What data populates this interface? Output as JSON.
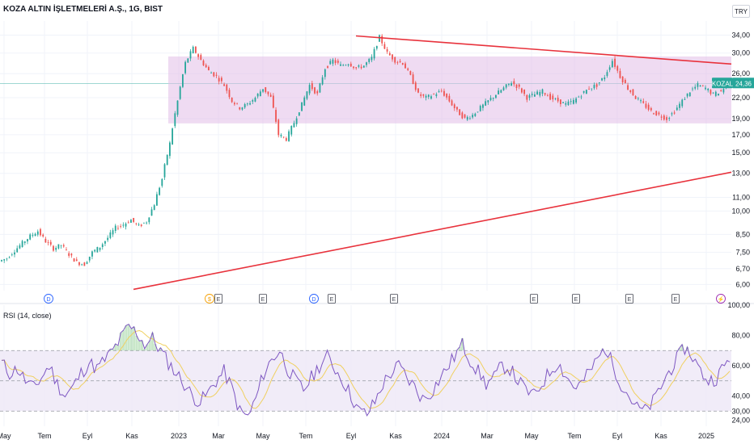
{
  "header": {
    "title": "KOZA ALTIN İŞLETMELERİ A.Ş., 1G, BIST",
    "currency": "TRY"
  },
  "price_badge": {
    "symbol": "KOZAL",
    "price": "24,36"
  },
  "colors": {
    "up": "#26a69a",
    "down": "#ef5350",
    "trendline": "#e8323c",
    "range_fill": "#e1bee7",
    "rsi_line": "#7e57c2",
    "rsi_ma": "#f0d060",
    "rsi_band": "#ede7f6",
    "grid": "#f0f3fa"
  },
  "chart_data": [
    {
      "type": "line",
      "subtype": "candlestick",
      "scale": "log",
      "y_ticks": [
        "34,00",
        "30,00",
        "26,00",
        "22,00",
        "19,00",
        "17,00",
        "15,00",
        "13,00",
        "11,00",
        "10,00",
        "8,50",
        "7,50",
        "6,70",
        "6,00"
      ],
      "y_tick_values": [
        34,
        30,
        26,
        22,
        19,
        17,
        15,
        13,
        11,
        10,
        8.5,
        7.5,
        6.7,
        6.0
      ],
      "x_ticks": [
        "May",
        "Tem",
        "Eyl",
        "Kas",
        "2023",
        "Mar",
        "May",
        "Tem",
        "Eyl",
        "Kas",
        "2024",
        "Mar",
        "May",
        "Tem",
        "Eyl",
        "Kas",
        "2025"
      ],
      "ylim": [
        5.75,
        37.5
      ],
      "series": [
        {
          "values": [
            7.2,
            7.6,
            8.0,
            8.4,
            8.7,
            8.1,
            7.7,
            7.9,
            7.4,
            7.0,
            6.9,
            7.5,
            7.8,
            8.3,
            8.9,
            9.1,
            9.4,
            9.0,
            9.3,
            10.5,
            12.5,
            16.0,
            21.5,
            28.0,
            31.0,
            28.5,
            26.5,
            25.5,
            24.0,
            21.5,
            20.5,
            21.0,
            22.0,
            23.5,
            22.0,
            17.0,
            16.5,
            18.5,
            21.0,
            24.0,
            22.5,
            27.0,
            28.5,
            27.5,
            28.0,
            27.0,
            27.5,
            29.0,
            33.5,
            30.0,
            28.5,
            28.0,
            25.5,
            22.5,
            22.0,
            22.5,
            23.0,
            21.5,
            20.0,
            19.0,
            19.5,
            20.5,
            21.5,
            22.5,
            23.5,
            24.5,
            23.5,
            22.0,
            22.5,
            23.0,
            22.0,
            21.5,
            21.0,
            21.5,
            22.5,
            23.5,
            24.0,
            25.5,
            28.5,
            25.5,
            23.5,
            22.0,
            21.0,
            20.0,
            19.5,
            19.0,
            20.0,
            21.5,
            23.0,
            24.0,
            23.5,
            22.5,
            23.0,
            24.3
          ],
          "note": "approximate closing path of the price chart"
        }
      ],
      "annotations": [
        {
          "type": "range",
          "from": 18.4,
          "to": 29.3,
          "label": ""
        },
        {
          "type": "trendline",
          "points": [
            [
              33.8,
              "start"
            ],
            [
              27.8,
              "end"
            ]
          ]
        },
        {
          "type": "trendline",
          "points": [
            [
              5.8,
              "start"
            ],
            [
              13.1,
              "end"
            ]
          ]
        }
      ],
      "events": [
        "D",
        "$",
        "E",
        "E",
        "D",
        "E",
        "E",
        "E",
        "E",
        "E",
        "E",
        "⚡"
      ],
      "event_kinds": [
        "dividend",
        "split",
        "earnings",
        "earnings",
        "dividend",
        "earnings",
        "earnings",
        "earnings",
        "earnings",
        "earnings",
        "earnings",
        "news"
      ],
      "grid": true,
      "legend": "none"
    },
    {
      "type": "line",
      "title": "RSI (14, close)",
      "y_ticks": [
        "100,00",
        "80,00",
        "60,00",
        "40,00",
        "30,00",
        "24,00"
      ],
      "y_tick_values": [
        100,
        80,
        60,
        40,
        30,
        24
      ],
      "ylim": [
        20,
        100
      ],
      "band": [
        30,
        70
      ],
      "series": [
        {
          "name": "RSI (14, close)",
          "values": [
            62,
            55,
            58,
            50,
            45,
            52,
            60,
            48,
            40,
            46,
            55,
            62,
            58,
            64,
            70,
            78,
            86,
            82,
            74,
            78,
            70,
            62,
            55,
            48,
            40,
            36,
            42,
            50,
            56,
            45,
            30,
            26,
            38,
            55,
            64,
            70,
            58,
            50,
            44,
            52,
            60,
            66,
            58,
            50,
            40,
            30,
            28,
            36,
            48,
            55,
            60,
            52,
            46,
            38,
            42,
            50,
            58,
            66,
            74,
            64,
            56,
            48,
            52,
            60,
            58,
            50,
            44,
            40,
            48,
            56,
            62,
            54,
            46,
            48,
            56,
            64,
            72,
            60,
            48,
            40,
            32,
            30,
            36,
            46,
            56,
            64,
            72,
            66,
            56,
            50,
            52,
            60,
            66
          ]
        }
      ],
      "grid": true,
      "legend": "none"
    }
  ]
}
